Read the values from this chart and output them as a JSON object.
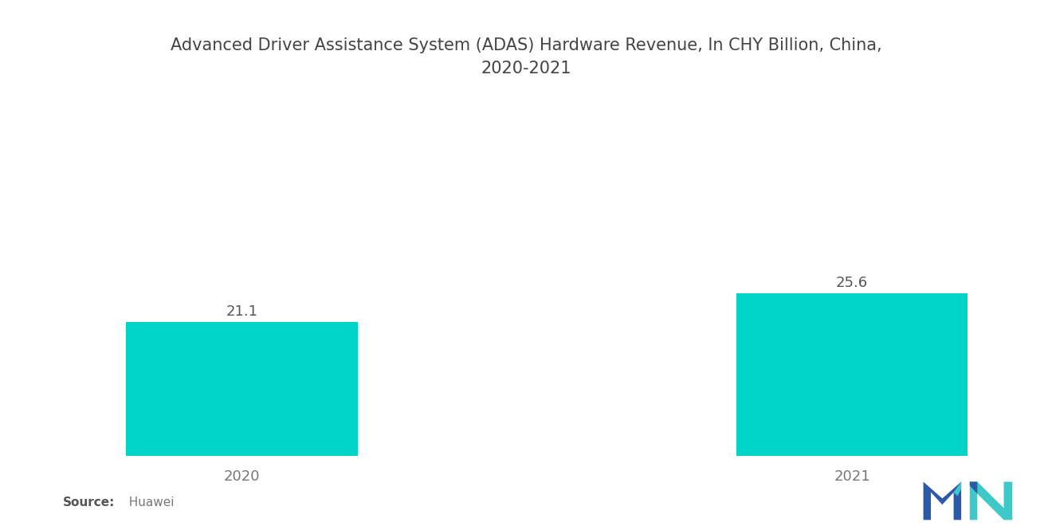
{
  "title": "Advanced Driver Assistance System (ADAS) Hardware Revenue, In CHY Billion, China,\n2020-2021",
  "categories": [
    "2020",
    "2021"
  ],
  "values": [
    21.1,
    25.6
  ],
  "bar_color": "#00D4C8",
  "background_color": "#ffffff",
  "value_labels": [
    "21.1",
    "25.6"
  ],
  "source_bold": "Source:",
  "source_normal": "  Huawei",
  "title_fontsize": 15,
  "label_fontsize": 13,
  "value_fontsize": 13,
  "source_fontsize": 11,
  "ylim": [
    0,
    50
  ],
  "bar_width": 0.38
}
